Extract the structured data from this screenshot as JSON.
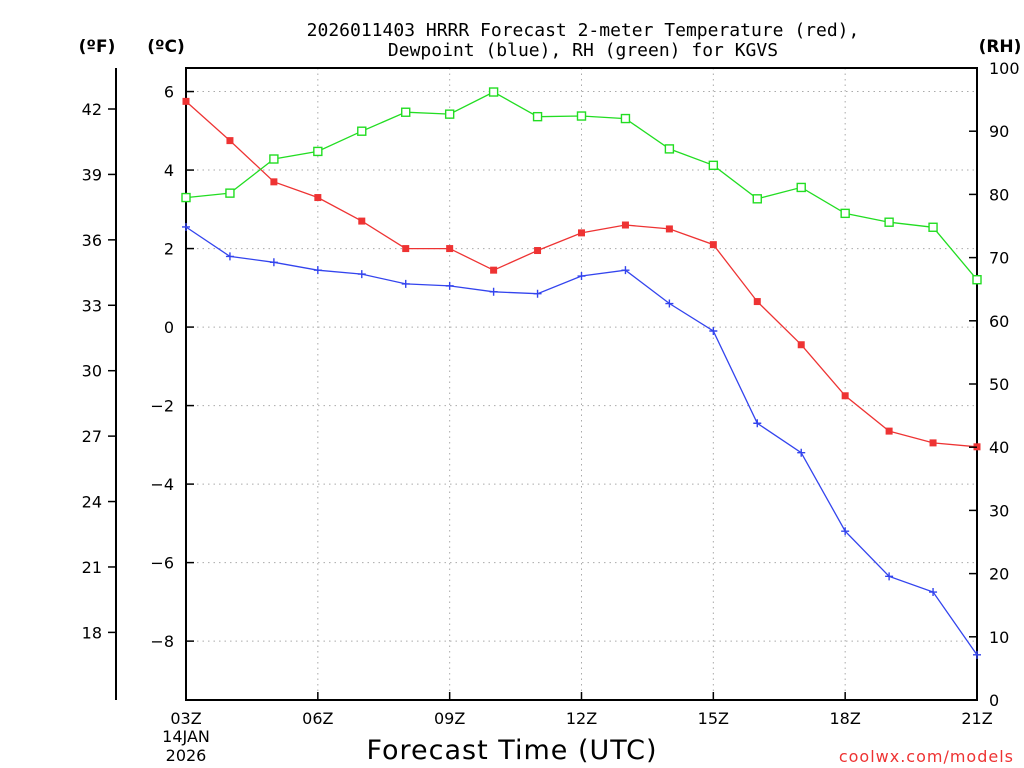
{
  "chart_data": {
    "type": "line",
    "title_line1": "2026011403 HRRR Forecast 2-meter Temperature (red),",
    "title_line2": "Dewpoint (blue), RH (green) for KGVS",
    "xlabel": "Forecast Time (UTC)",
    "date_line1": "14JAN",
    "date_line2": "2026",
    "watermark": "coolwx.com/models",
    "left_axis_f_label": "(ºF)",
    "left_axis_c_label": "(ºC)",
    "right_axis_label": "(RH)",
    "x_range": [
      0,
      18
    ],
    "celsius_range": [
      -9.5,
      6.6
    ],
    "rh_range": [
      0,
      100
    ],
    "x_ticks": [
      {
        "x": 0,
        "label": "03Z"
      },
      {
        "x": 3,
        "label": "06Z"
      },
      {
        "x": 6,
        "label": "09Z"
      },
      {
        "x": 9,
        "label": "12Z"
      },
      {
        "x": 12,
        "label": "15Z"
      },
      {
        "x": 15,
        "label": "18Z"
      },
      {
        "x": 18,
        "label": "21Z"
      }
    ],
    "celsius_ticks": [
      {
        "v": 6,
        "label": "6"
      },
      {
        "v": 4,
        "label": "4"
      },
      {
        "v": 2,
        "label": "2"
      },
      {
        "v": 0,
        "label": "0"
      },
      {
        "v": -2,
        "label": "−2"
      },
      {
        "v": -4,
        "label": "−4"
      },
      {
        "v": -6,
        "label": "−6"
      },
      {
        "v": -8,
        "label": "−8"
      }
    ],
    "fahrenheit_ticks": [
      {
        "v": 42,
        "label": "42"
      },
      {
        "v": 39,
        "label": "39"
      },
      {
        "v": 36,
        "label": "36"
      },
      {
        "v": 33,
        "label": "33"
      },
      {
        "v": 30,
        "label": "30"
      },
      {
        "v": 27,
        "label": "27"
      },
      {
        "v": 24,
        "label": "24"
      },
      {
        "v": 21,
        "label": "21"
      },
      {
        "v": 18,
        "label": "18"
      }
    ],
    "rh_ticks": [
      {
        "v": 100,
        "label": "100"
      },
      {
        "v": 90,
        "label": "90"
      },
      {
        "v": 80,
        "label": "80"
      },
      {
        "v": 70,
        "label": "70"
      },
      {
        "v": 60,
        "label": "60"
      },
      {
        "v": 50,
        "label": "50"
      },
      {
        "v": 40,
        "label": "40"
      },
      {
        "v": 30,
        "label": "30"
      },
      {
        "v": 20,
        "label": "20"
      },
      {
        "v": 10,
        "label": "10"
      },
      {
        "v": 0,
        "label": "0"
      }
    ],
    "x": [
      0,
      1,
      2,
      3,
      4,
      5,
      6,
      7,
      8,
      9,
      10,
      11,
      12,
      13,
      14,
      15,
      16,
      17,
      18
    ],
    "series": [
      {
        "name": "Temperature",
        "unit": "C",
        "axis": "celsius",
        "color": "#ee3333",
        "marker": "filled-square",
        "values": [
          5.75,
          4.75,
          3.7,
          3.3,
          2.7,
          2.0,
          2.0,
          1.45,
          1.95,
          2.4,
          2.6,
          2.5,
          2.1,
          0.65,
          -0.45,
          -1.75,
          -2.65,
          -2.95,
          -3.05
        ]
      },
      {
        "name": "Dewpoint",
        "unit": "C",
        "axis": "celsius",
        "color": "#3344ee",
        "marker": "plus",
        "values": [
          2.55,
          1.8,
          1.65,
          1.45,
          1.35,
          1.1,
          1.05,
          0.9,
          0.85,
          1.3,
          1.45,
          0.6,
          -0.1,
          -2.45,
          -3.2,
          -5.2,
          -6.35,
          -6.75,
          -8.35
        ]
      },
      {
        "name": "RH",
        "unit": "%",
        "axis": "rh",
        "color": "#22dd22",
        "marker": "open-square",
        "values": [
          79.5,
          80.2,
          85.6,
          86.8,
          90.0,
          93.0,
          92.7,
          96.2,
          92.3,
          92.4,
          92.0,
          87.2,
          84.6,
          79.3,
          81.1,
          77.0,
          75.6,
          74.8,
          66.5
        ]
      }
    ]
  }
}
